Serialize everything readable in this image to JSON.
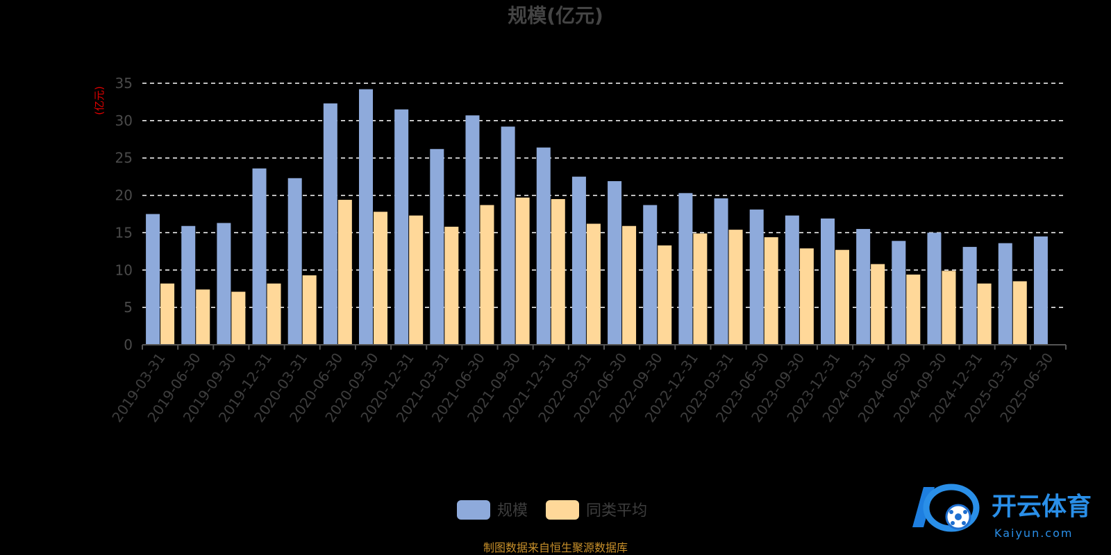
{
  "chart_data": {
    "type": "bar",
    "title": "规模(亿元)",
    "ylabel": "(亿元)",
    "ylim": [
      0,
      35
    ],
    "yticks": [
      "0",
      "5",
      "10",
      "15",
      "20",
      "25",
      "30",
      "35"
    ],
    "grid": true,
    "legend_position": "bottom-center",
    "categories": [
      "2019-03-31",
      "2019-06-30",
      "2019-09-30",
      "2019-12-31",
      "2020-03-31",
      "2020-06-30",
      "2020-09-30",
      "2020-12-31",
      "2021-03-31",
      "2021-06-30",
      "2021-09-30",
      "2021-12-31",
      "2022-03-31",
      "2022-06-30",
      "2022-09-30",
      "2022-12-31",
      "2023-03-31",
      "2023-06-30",
      "2023-09-30",
      "2023-12-31",
      "2024-03-31",
      "2024-06-30",
      "2024-09-30",
      "2024-12-31",
      "2025-03-31",
      "2025-06-30"
    ],
    "series": [
      {
        "name": "规模",
        "color": "#8eaadb",
        "values": [
          17.5,
          15.9,
          16.3,
          23.6,
          22.3,
          32.3,
          34.2,
          31.5,
          26.2,
          30.7,
          29.2,
          26.4,
          22.5,
          21.9,
          18.7,
          20.3,
          19.6,
          18.1,
          17.3,
          16.9,
          15.5,
          13.9,
          15.0,
          13.1,
          13.6,
          14.5
        ]
      },
      {
        "name": "同类平均",
        "color": "#ffd899",
        "values": [
          8.2,
          7.4,
          7.1,
          8.2,
          9.3,
          19.4,
          17.8,
          17.3,
          15.8,
          18.7,
          19.7,
          19.5,
          16.2,
          15.9,
          13.3,
          14.9,
          15.4,
          14.4,
          12.9,
          12.7,
          10.8,
          9.4,
          9.9,
          8.2,
          8.5,
          null
        ]
      }
    ]
  },
  "source_note": "制图数据来自恒生聚源数据库",
  "brand": {
    "name": "开云体育",
    "domain": "Kaiyun.com"
  },
  "colors": {
    "grid": "#ffffff",
    "axis": "#555555"
  }
}
